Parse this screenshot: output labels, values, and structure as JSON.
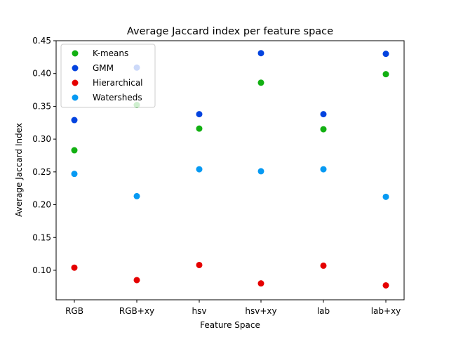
{
  "chart_data": {
    "type": "scatter",
    "title": "Average Jaccard index per feature space",
    "xlabel": "Feature Space",
    "ylabel": "Average Jaccard Index",
    "categories": [
      "RGB",
      "RGB+xy",
      "hsv",
      "hsv+xy",
      "lab",
      "lab+xy"
    ],
    "ylim": [
      0.055,
      0.45
    ],
    "yticks": [
      0.1,
      0.15,
      0.2,
      0.25,
      0.3,
      0.35,
      0.4,
      0.45
    ],
    "ytick_labels": [
      "0.10",
      "0.15",
      "0.20",
      "0.25",
      "0.30",
      "0.35",
      "0.40",
      "0.45"
    ],
    "grid": false,
    "legend_position": "top-left",
    "series": [
      {
        "name": "K-means",
        "color": "#12b012",
        "values": [
          0.283,
          0.352,
          0.316,
          0.386,
          0.315,
          0.399
        ]
      },
      {
        "name": "GMM",
        "color": "#0343df",
        "values": [
          0.329,
          0.409,
          0.338,
          0.431,
          0.338,
          0.43
        ]
      },
      {
        "name": "Hierarchical",
        "color": "#e50000",
        "values": [
          0.104,
          0.085,
          0.108,
          0.08,
          0.107,
          0.077
        ]
      },
      {
        "name": "Watersheds",
        "color": "#069af3",
        "values": [
          0.247,
          0.213,
          0.254,
          0.251,
          0.254,
          0.212
        ]
      }
    ]
  }
}
